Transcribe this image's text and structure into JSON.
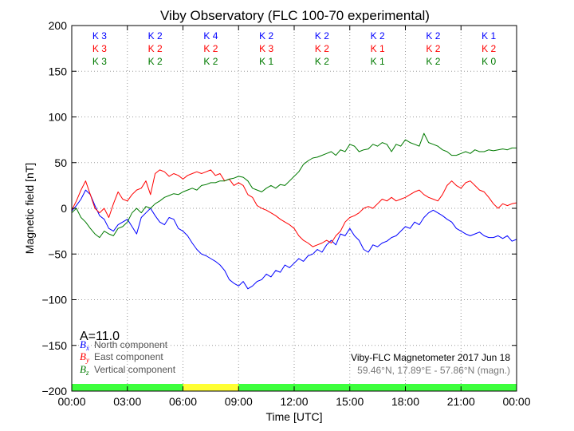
{
  "chart_data": {
    "type": "line",
    "title": "Viby Observatory (FLC 100-70 experimental)",
    "xlabel": "Time [UTC]",
    "ylabel": "Magnetic field [nT]",
    "xlim": [
      0,
      24
    ],
    "ylim": [
      -200,
      200
    ],
    "x_ticks": [
      0,
      3,
      6,
      9,
      12,
      15,
      18,
      21,
      24
    ],
    "x_tick_labels": [
      "00:00",
      "03:00",
      "06:00",
      "09:00",
      "12:00",
      "15:00",
      "18:00",
      "21:00",
      "00:00"
    ],
    "y_ticks": [
      -200,
      -150,
      -100,
      -50,
      0,
      50,
      100,
      150,
      200
    ],
    "y_tick_labels": [
      "−200",
      "−150",
      "−100",
      "−50",
      "0",
      "50",
      "100",
      "150",
      "200"
    ],
    "grid": true,
    "legend_position": "bottom-left",
    "series": [
      {
        "name": "North component",
        "symbol": "B",
        "subscript": "x",
        "color": "#0000ff",
        "x": [
          0,
          0.25,
          0.5,
          0.75,
          1.0,
          1.25,
          1.5,
          1.75,
          2.0,
          2.25,
          2.5,
          2.75,
          3.0,
          3.25,
          3.5,
          3.75,
          4.0,
          4.25,
          4.5,
          4.75,
          5.0,
          5.25,
          5.5,
          5.75,
          6.0,
          6.25,
          6.5,
          6.75,
          7.0,
          7.25,
          7.5,
          7.75,
          8.0,
          8.25,
          8.5,
          8.75,
          9.0,
          9.25,
          9.5,
          9.75,
          10.0,
          10.25,
          10.5,
          10.75,
          11.0,
          11.25,
          11.5,
          11.75,
          12.0,
          12.25,
          12.5,
          12.75,
          13.0,
          13.25,
          13.5,
          13.75,
          14.0,
          14.25,
          14.5,
          14.75,
          15.0,
          15.25,
          15.5,
          15.75,
          16.0,
          16.25,
          16.5,
          16.75,
          17.0,
          17.25,
          17.5,
          17.75,
          18.0,
          18.25,
          18.5,
          18.75,
          19.0,
          19.25,
          19.5,
          19.75,
          20.0,
          20.25,
          20.5,
          20.75,
          21.0,
          21.25,
          21.5,
          21.75,
          22.0,
          22.25,
          22.5,
          22.75,
          23.0,
          23.25,
          23.5,
          23.75,
          24.0
        ],
        "y": [
          -3,
          3,
          10,
          20,
          15,
          3,
          -8,
          -12,
          -22,
          -25,
          -18,
          -15,
          -12,
          -20,
          -28,
          -10,
          -5,
          0,
          -8,
          -15,
          -18,
          -10,
          -12,
          -22,
          -25,
          -30,
          -38,
          -45,
          -50,
          -52,
          -55,
          -58,
          -62,
          -68,
          -78,
          -82,
          -85,
          -80,
          -88,
          -85,
          -80,
          -78,
          -72,
          -75,
          -68,
          -70,
          -62,
          -65,
          -60,
          -55,
          -58,
          -52,
          -50,
          -45,
          -48,
          -40,
          -35,
          -40,
          -28,
          -30,
          -22,
          -30,
          -35,
          -45,
          -48,
          -40,
          -42,
          -38,
          -36,
          -32,
          -30,
          -25,
          -20,
          -22,
          -15,
          -18,
          -10,
          -5,
          -2,
          -5,
          -8,
          -12,
          -15,
          -22,
          -25,
          -28,
          -30,
          -28,
          -26,
          -30,
          -32,
          -32,
          -30,
          -33,
          -30,
          -36,
          -34
        ]
      },
      {
        "name": "East component",
        "symbol": "B",
        "subscript": "y",
        "color": "#ff0000",
        "x": [
          0,
          0.25,
          0.5,
          0.75,
          1.0,
          1.25,
          1.5,
          1.75,
          2.0,
          2.25,
          2.5,
          2.75,
          3.0,
          3.25,
          3.5,
          3.75,
          4.0,
          4.25,
          4.5,
          4.75,
          5.0,
          5.25,
          5.5,
          5.75,
          6.0,
          6.25,
          6.5,
          6.75,
          7.0,
          7.25,
          7.5,
          7.75,
          8.0,
          8.25,
          8.5,
          8.75,
          9.0,
          9.25,
          9.5,
          9.75,
          10.0,
          10.25,
          10.5,
          10.75,
          11.0,
          11.25,
          11.5,
          11.75,
          12.0,
          12.25,
          12.5,
          12.75,
          13.0,
          13.25,
          13.5,
          13.75,
          14.0,
          14.25,
          14.5,
          14.75,
          15.0,
          15.25,
          15.5,
          15.75,
          16.0,
          16.25,
          16.5,
          16.75,
          17.0,
          17.25,
          17.5,
          17.75,
          18.0,
          18.25,
          18.5,
          18.75,
          19.0,
          19.25,
          19.5,
          19.75,
          20.0,
          20.25,
          20.5,
          20.75,
          21.0,
          21.25,
          21.5,
          21.75,
          22.0,
          22.25,
          22.5,
          22.75,
          23.0,
          23.25,
          23.5,
          23.75,
          24.0
        ],
        "y": [
          -2,
          8,
          20,
          30,
          15,
          0,
          -5,
          0,
          -10,
          5,
          18,
          10,
          8,
          15,
          20,
          22,
          30,
          15,
          38,
          42,
          40,
          35,
          38,
          36,
          32,
          36,
          38,
          40,
          38,
          40,
          42,
          36,
          38,
          30,
          32,
          25,
          28,
          25,
          15,
          12,
          3,
          0,
          -2,
          -5,
          -8,
          -12,
          -15,
          -18,
          -22,
          -30,
          -35,
          -38,
          -42,
          -40,
          -38,
          -35,
          -38,
          -30,
          -25,
          -15,
          -10,
          -8,
          -5,
          0,
          2,
          0,
          5,
          10,
          8,
          12,
          8,
          10,
          12,
          15,
          18,
          20,
          15,
          12,
          10,
          8,
          15,
          25,
          30,
          25,
          22,
          28,
          30,
          25,
          20,
          18,
          12,
          5,
          0,
          5,
          3,
          5,
          6
        ]
      },
      {
        "name": "Vertical component",
        "symbol": "B",
        "subscript": "z",
        "color": "#007a00",
        "x": [
          0,
          0.25,
          0.5,
          0.75,
          1.0,
          1.25,
          1.5,
          1.75,
          2.0,
          2.25,
          2.5,
          2.75,
          3.0,
          3.25,
          3.5,
          3.75,
          4.0,
          4.25,
          4.5,
          4.75,
          5.0,
          5.25,
          5.5,
          5.75,
          6.0,
          6.25,
          6.5,
          6.75,
          7.0,
          7.25,
          7.5,
          7.75,
          8.0,
          8.25,
          8.5,
          8.75,
          9.0,
          9.25,
          9.5,
          9.75,
          10.0,
          10.25,
          10.5,
          10.75,
          11.0,
          11.25,
          11.5,
          11.75,
          12.0,
          12.25,
          12.5,
          12.75,
          13.0,
          13.25,
          13.5,
          13.75,
          14.0,
          14.25,
          14.5,
          14.75,
          15.0,
          15.25,
          15.5,
          15.75,
          16.0,
          16.25,
          16.5,
          16.75,
          17.0,
          17.25,
          17.5,
          17.75,
          18.0,
          18.25,
          18.5,
          18.75,
          19.0,
          19.25,
          19.5,
          19.75,
          20.0,
          20.25,
          20.5,
          20.75,
          21.0,
          21.25,
          21.5,
          21.75,
          22.0,
          22.25,
          22.5,
          22.75,
          23.0,
          23.25,
          23.5,
          23.75,
          24.0
        ],
        "y": [
          -5,
          0,
          -10,
          -15,
          -22,
          -28,
          -32,
          -25,
          -28,
          -30,
          -22,
          -20,
          -15,
          -5,
          0,
          -5,
          2,
          0,
          5,
          8,
          12,
          14,
          16,
          15,
          18,
          20,
          22,
          20,
          25,
          26,
          28,
          28,
          30,
          30,
          32,
          33,
          35,
          34,
          30,
          22,
          20,
          18,
          22,
          25,
          22,
          26,
          25,
          30,
          35,
          40,
          48,
          52,
          55,
          56,
          58,
          60,
          62,
          58,
          64,
          62,
          70,
          68,
          62,
          64,
          65,
          70,
          68,
          72,
          70,
          62,
          70,
          68,
          75,
          72,
          70,
          68,
          82,
          72,
          70,
          68,
          64,
          62,
          58,
          58,
          60,
          62,
          60,
          64,
          62,
          62,
          64,
          63,
          64,
          65,
          64,
          66,
          66
        ]
      }
    ],
    "k_index_rows": [
      {
        "color": "#0000ff",
        "labels": [
          "K 3",
          "K 2",
          "K 4",
          "K 2",
          "K 2",
          "K 2",
          "K 2",
          "K 1"
        ]
      },
      {
        "color": "#ff0000",
        "labels": [
          "K 3",
          "K 2",
          "K 2",
          "K 3",
          "K 2",
          "K 1",
          "K 2",
          "K 2"
        ]
      },
      {
        "color": "#007a00",
        "labels": [
          "K 3",
          "K 2",
          "K 2",
          "K 1",
          "K 2",
          "K 1",
          "K 2",
          "K 0"
        ]
      }
    ],
    "a_index": "A=11.0",
    "status_bar": [
      {
        "from": 0,
        "to": 6,
        "color": "#3dff3d"
      },
      {
        "from": 6,
        "to": 9,
        "color": "#ffff33"
      },
      {
        "from": 9,
        "to": 24,
        "color": "#3dff3d"
      }
    ],
    "info_lines": [
      "Viby-FLC Magnetometer 2017 Jun 18",
      "59.46°N, 17.89°E - 57.86°N (magn.)"
    ]
  }
}
